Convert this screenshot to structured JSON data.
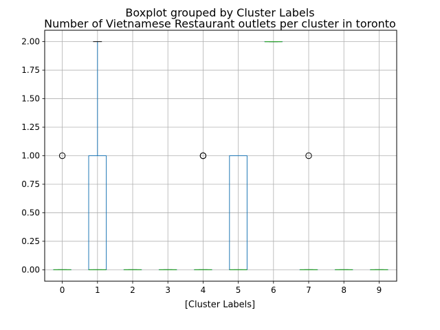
{
  "chart_data": {
    "type": "boxplot",
    "suptitle": "Boxplot grouped by Cluster Labels",
    "title": "Number of Vietnamese Restaurant outlets per cluster in toronto",
    "xlabel": "[Cluster Labels]",
    "ylabel": "",
    "ylim": [
      -0.1,
      2.1
    ],
    "yticks": [
      0.0,
      0.25,
      0.5,
      0.75,
      1.0,
      1.25,
      1.5,
      1.75,
      2.0
    ],
    "ytick_labels": [
      "0.00",
      "0.25",
      "0.50",
      "0.75",
      "1.00",
      "1.25",
      "1.50",
      "1.75",
      "2.00"
    ],
    "grid": true,
    "colors": {
      "box": "#1f77b4",
      "median": "#2ca02c",
      "whisker": "#1f77b4",
      "cap": "#000000",
      "flier": "#000000",
      "grid": "#b0b0b0"
    },
    "categories": [
      "0",
      "1",
      "2",
      "3",
      "4",
      "5",
      "6",
      "7",
      "8",
      "9"
    ],
    "boxes": [
      {
        "label": "0",
        "whislo": 0,
        "q1": 0,
        "med": 0,
        "q3": 0,
        "whishi": 0,
        "fliers": [
          1
        ]
      },
      {
        "label": "1",
        "whislo": 0,
        "q1": 0,
        "med": 0,
        "q3": 1,
        "whishi": 2,
        "fliers": []
      },
      {
        "label": "2",
        "whislo": 0,
        "q1": 0,
        "med": 0,
        "q3": 0,
        "whishi": 0,
        "fliers": []
      },
      {
        "label": "3",
        "whislo": 0,
        "q1": 0,
        "med": 0,
        "q3": 0,
        "whishi": 0,
        "fliers": []
      },
      {
        "label": "4",
        "whislo": 0,
        "q1": 0,
        "med": 0,
        "q3": 0,
        "whishi": 0,
        "fliers": [
          1,
          1
        ]
      },
      {
        "label": "5",
        "whislo": 0,
        "q1": 0,
        "med": 0,
        "q3": 1,
        "whishi": 1,
        "fliers": []
      },
      {
        "label": "6",
        "whislo": 2,
        "q1": 2,
        "med": 2,
        "q3": 2,
        "whishi": 2,
        "fliers": []
      },
      {
        "label": "7",
        "whislo": 0,
        "q1": 0,
        "med": 0,
        "q3": 0,
        "whishi": 0,
        "fliers": [
          1
        ]
      },
      {
        "label": "8",
        "whislo": 0,
        "q1": 0,
        "med": 0,
        "q3": 0,
        "whishi": 0,
        "fliers": []
      },
      {
        "label": "9",
        "whislo": 0,
        "q1": 0,
        "med": 0,
        "q3": 0,
        "whishi": 0,
        "fliers": []
      }
    ]
  }
}
